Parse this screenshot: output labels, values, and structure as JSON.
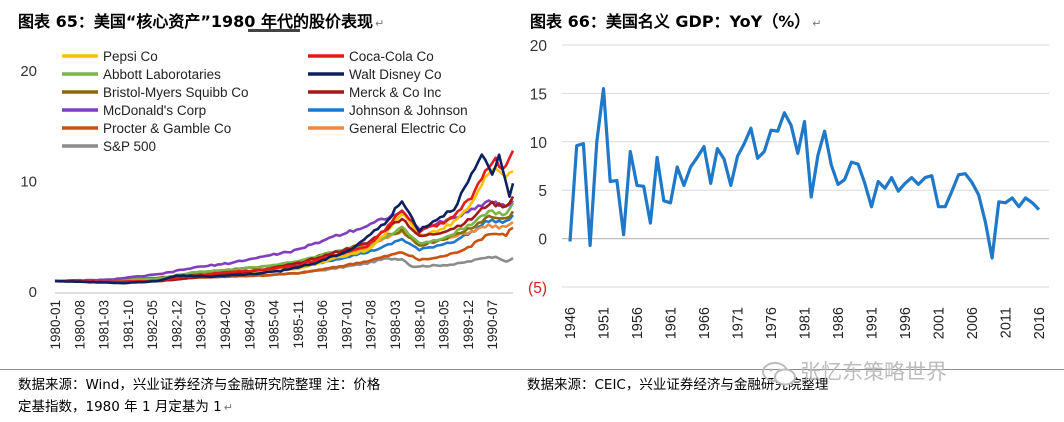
{
  "left": {
    "title": "图表 65：美国“核心资产”1980 年代的股价表现",
    "source_line1": "数据来源：Wind，兴业证券经济与金融研究院整理   注：价格",
    "source_line2": "定基指数，1980 年 1 月定基为 1"
  },
  "right": {
    "title": "图表 66：美国名义 GDP：YoY（%）",
    "source_line1": "数据来源：CEIC，兴业证券经济与金融研究院整理"
  },
  "return_mark": "↵",
  "watermark": "张忆东策略世界",
  "colors": {
    "pepsi": "#f5c400",
    "coca": "#e51a1a",
    "abbott": "#7ab648",
    "disney": "#0d2060",
    "bristol": "#8a6a00",
    "merck": "#a31818",
    "mcd": "#7f3fbf",
    "jnj": "#1f78c8",
    "pg": "#c8520e",
    "ge": "#f08a40",
    "sp500": "#8c8c8c",
    "gdp": "#1f78c8",
    "negative_label": "#d42020",
    "grid": "#d9d9d9"
  },
  "chart_data": [
    {
      "type": "line",
      "title": "美国“核心资产”1980 年代的股价表现",
      "xlabel": "",
      "ylabel": "",
      "ylim": [
        0,
        20
      ],
      "yticks": [
        "0",
        "10",
        "20"
      ],
      "x_tick_labels": [
        "1980-01",
        "1980-08",
        "1981-03",
        "1981-10",
        "1982-05",
        "1982-12",
        "1983-07",
        "1984-02",
        "1984-09",
        "1985-04",
        "1985-11",
        "1986-06",
        "1987-01",
        "1987-08",
        "1988-03",
        "1988-10",
        "1989-05",
        "1989-12",
        "1990-07"
      ],
      "x_count": 133,
      "legend_position": "top-left",
      "series": [
        {
          "key": "pepsi",
          "name": "Pepsi Co",
          "anchors": [
            [
              0,
              1
            ],
            [
              15,
              0.9
            ],
            [
              30,
              1.0
            ],
            [
              35,
              1.2
            ],
            [
              50,
              1.6
            ],
            [
              60,
              1.9
            ],
            [
              70,
              2.1
            ],
            [
              80,
              3.0
            ],
            [
              90,
              3.8
            ],
            [
              95,
              5.2
            ],
            [
              100,
              7.2
            ],
            [
              105,
              5.1
            ],
            [
              110,
              5.5
            ],
            [
              115,
              6.3
            ],
            [
              120,
              8.0
            ],
            [
              125,
              10.8
            ],
            [
              127,
              11.2
            ],
            [
              130,
              10.4
            ],
            [
              132,
              11.0
            ]
          ]
        },
        {
          "key": "coca",
          "name": "Coca-Cola Co",
          "anchors": [
            [
              0,
              1
            ],
            [
              15,
              0.9
            ],
            [
              30,
              1.0
            ],
            [
              35,
              1.3
            ],
            [
              50,
              1.8
            ],
            [
              60,
              2.0
            ],
            [
              70,
              2.4
            ],
            [
              80,
              3.3
            ],
            [
              90,
              4.1
            ],
            [
              95,
              5.6
            ],
            [
              100,
              7.4
            ],
            [
              105,
              5.5
            ],
            [
              110,
              6.0
            ],
            [
              115,
              6.8
            ],
            [
              120,
              8.6
            ],
            [
              125,
              11.5
            ],
            [
              127,
              12.0
            ],
            [
              129,
              11.0
            ],
            [
              132,
              12.6
            ]
          ]
        },
        {
          "key": "abbott",
          "name": "Abbott Laborotaries",
          "anchors": [
            [
              0,
              1
            ],
            [
              15,
              1.0
            ],
            [
              30,
              1.2
            ],
            [
              40,
              1.8
            ],
            [
              50,
              2.0
            ],
            [
              60,
              2.3
            ],
            [
              70,
              2.8
            ],
            [
              80,
              3.6
            ],
            [
              90,
              4.3
            ],
            [
              95,
              5.0
            ],
            [
              100,
              5.8
            ],
            [
              105,
              4.4
            ],
            [
              110,
              4.7
            ],
            [
              115,
              5.3
            ],
            [
              120,
              6.2
            ],
            [
              125,
              7.3
            ],
            [
              130,
              7.0
            ],
            [
              132,
              7.9
            ]
          ]
        },
        {
          "key": "disney",
          "name": "Walt Disney Co",
          "anchors": [
            [
              0,
              1
            ],
            [
              10,
              0.9
            ],
            [
              20,
              0.8
            ],
            [
              30,
              1.0
            ],
            [
              35,
              1.5
            ],
            [
              45,
              1.4
            ],
            [
              55,
              1.6
            ],
            [
              65,
              1.9
            ],
            [
              75,
              2.6
            ],
            [
              85,
              3.8
            ],
            [
              95,
              6.2
            ],
            [
              100,
              8.2
            ],
            [
              105,
              5.6
            ],
            [
              110,
              6.6
            ],
            [
              115,
              7.6
            ],
            [
              120,
              10.5
            ],
            [
              123,
              12.3
            ],
            [
              126,
              10.5
            ],
            [
              128,
              12.4
            ],
            [
              131,
              8.8
            ],
            [
              132,
              9.6
            ]
          ]
        },
        {
          "key": "bristol",
          "name": "Bristol-Myers Squibb Co",
          "anchors": [
            [
              0,
              1
            ],
            [
              15,
              1.0
            ],
            [
              30,
              1.3
            ],
            [
              40,
              1.7
            ],
            [
              50,
              2.0
            ],
            [
              60,
              2.3
            ],
            [
              70,
              2.7
            ],
            [
              80,
              3.6
            ],
            [
              90,
              4.4
            ],
            [
              95,
              5.0
            ],
            [
              100,
              5.6
            ],
            [
              105,
              4.2
            ],
            [
              110,
              4.6
            ],
            [
              115,
              5.1
            ],
            [
              120,
              5.8
            ],
            [
              125,
              6.8
            ],
            [
              130,
              6.6
            ],
            [
              132,
              7.2
            ]
          ]
        },
        {
          "key": "merck",
          "name": "Merck & Co Inc",
          "anchors": [
            [
              0,
              1
            ],
            [
              15,
              0.9
            ],
            [
              30,
              1.0
            ],
            [
              40,
              1.3
            ],
            [
              50,
              1.6
            ],
            [
              60,
              2.0
            ],
            [
              70,
              2.6
            ],
            [
              80,
              3.5
            ],
            [
              90,
              4.4
            ],
            [
              95,
              5.6
            ],
            [
              100,
              6.7
            ],
            [
              105,
              5.0
            ],
            [
              110,
              5.3
            ],
            [
              115,
              5.8
            ],
            [
              120,
              6.6
            ],
            [
              125,
              8.0
            ],
            [
              130,
              7.8
            ],
            [
              132,
              8.6
            ]
          ]
        },
        {
          "key": "mcd",
          "name": "McDonald's Corp",
          "anchors": [
            [
              0,
              1
            ],
            [
              15,
              1.1
            ],
            [
              30,
              1.6
            ],
            [
              40,
              2.2
            ],
            [
              50,
              2.6
            ],
            [
              60,
              3.2
            ],
            [
              70,
              3.8
            ],
            [
              80,
              5.0
            ],
            [
              90,
              6.0
            ],
            [
              95,
              6.7
            ],
            [
              100,
              7.2
            ],
            [
              105,
              5.6
            ],
            [
              110,
              6.2
            ],
            [
              115,
              6.7
            ],
            [
              120,
              7.4
            ],
            [
              125,
              8.3
            ],
            [
              130,
              7.7
            ],
            [
              132,
              8.4
            ]
          ]
        },
        {
          "key": "jnj",
          "name": "Johnson & Johnson",
          "anchors": [
            [
              0,
              1
            ],
            [
              15,
              1.0
            ],
            [
              30,
              1.2
            ],
            [
              40,
              1.5
            ],
            [
              50,
              1.6
            ],
            [
              60,
              1.8
            ],
            [
              70,
              2.2
            ],
            [
              80,
              2.9
            ],
            [
              90,
              3.6
            ],
            [
              95,
              4.1
            ],
            [
              100,
              4.8
            ],
            [
              105,
              3.8
            ],
            [
              110,
              4.2
            ],
            [
              115,
              4.6
            ],
            [
              120,
              5.4
            ],
            [
              125,
              6.5
            ],
            [
              130,
              6.3
            ],
            [
              132,
              7.0
            ]
          ]
        },
        {
          "key": "pg",
          "name": "Procter & Gamble Co",
          "anchors": [
            [
              0,
              1
            ],
            [
              15,
              0.9
            ],
            [
              30,
              1.0
            ],
            [
              40,
              1.3
            ],
            [
              50,
              1.4
            ],
            [
              60,
              1.5
            ],
            [
              70,
              1.7
            ],
            [
              80,
              2.2
            ],
            [
              90,
              2.8
            ],
            [
              95,
              3.2
            ],
            [
              100,
              3.6
            ],
            [
              105,
              2.9
            ],
            [
              110,
              3.1
            ],
            [
              115,
              3.5
            ],
            [
              120,
              4.2
            ],
            [
              125,
              5.3
            ],
            [
              130,
              5.2
            ],
            [
              132,
              5.9
            ]
          ]
        },
        {
          "key": "ge",
          "name": "General Electric Co",
          "anchors": [
            [
              0,
              1
            ],
            [
              15,
              1.0
            ],
            [
              30,
              1.1
            ],
            [
              40,
              1.5
            ],
            [
              50,
              1.7
            ],
            [
              60,
              2.0
            ],
            [
              70,
              2.4
            ],
            [
              80,
              3.1
            ],
            [
              90,
              4.0
            ],
            [
              95,
              4.8
            ],
            [
              100,
              5.5
            ],
            [
              105,
              4.3
            ],
            [
              110,
              4.6
            ],
            [
              115,
              5.0
            ],
            [
              120,
              5.5
            ],
            [
              125,
              6.0
            ],
            [
              130,
              5.8
            ],
            [
              132,
              6.3
            ]
          ]
        },
        {
          "key": "sp500",
          "name": "S&P 500",
          "anchors": [
            [
              0,
              1
            ],
            [
              15,
              1.0
            ],
            [
              30,
              1.0
            ],
            [
              40,
              1.3
            ],
            [
              50,
              1.4
            ],
            [
              60,
              1.5
            ],
            [
              70,
              1.7
            ],
            [
              80,
              2.1
            ],
            [
              90,
              2.6
            ],
            [
              95,
              3.0
            ],
            [
              100,
              3.0
            ],
            [
              103,
              2.3
            ],
            [
              110,
              2.4
            ],
            [
              115,
              2.5
            ],
            [
              120,
              2.8
            ],
            [
              125,
              3.2
            ],
            [
              128,
              3.1
            ],
            [
              130,
              2.8
            ],
            [
              132,
              3.0
            ]
          ]
        }
      ]
    },
    {
      "type": "line",
      "title": "美国名义 GDP：YoY（%）",
      "xlabel": "",
      "ylabel": "",
      "ylim": [
        -5,
        20
      ],
      "yticks": [
        "(5)",
        "0",
        "5",
        "10",
        "15",
        "20"
      ],
      "x_tick_labels": [
        "1946",
        "1951",
        "1956",
        "1961",
        "1966",
        "1971",
        "1976",
        "1981",
        "1986",
        "1991",
        "1996",
        "2001",
        "2006",
        "2011",
        "2016"
      ],
      "series": [
        {
          "key": "gdp",
          "name": "Nominal GDP YoY",
          "x": [
            1946,
            1947,
            1948,
            1949,
            1950,
            1951,
            1952,
            1953,
            1954,
            1955,
            1956,
            1957,
            1958,
            1959,
            1960,
            1961,
            1962,
            1963,
            1964,
            1965,
            1966,
            1967,
            1968,
            1969,
            1970,
            1971,
            1972,
            1973,
            1974,
            1975,
            1976,
            1977,
            1978,
            1979,
            1980,
            1981,
            1982,
            1983,
            1984,
            1985,
            1986,
            1987,
            1988,
            1989,
            1990,
            1991,
            1992,
            1993,
            1994,
            1995,
            1996,
            1997,
            1998,
            1999,
            2000,
            2001,
            2002,
            2003,
            2004,
            2005,
            2006,
            2007,
            2008,
            2009,
            2010,
            2011,
            2012,
            2013,
            2014,
            2015,
            2016
          ],
          "values": [
            -0.3,
            9.6,
            9.8,
            -0.7,
            10.0,
            15.5,
            5.9,
            6.0,
            0.4,
            9.0,
            5.5,
            5.4,
            1.6,
            8.4,
            3.9,
            3.7,
            7.4,
            5.5,
            7.4,
            8.4,
            9.5,
            5.7,
            9.3,
            8.2,
            5.5,
            8.5,
            9.8,
            11.4,
            8.3,
            9.0,
            11.2,
            11.1,
            13.0,
            11.7,
            8.8,
            12.1,
            4.3,
            8.6,
            11.1,
            7.6,
            5.6,
            6.1,
            7.9,
            7.7,
            5.7,
            3.3,
            5.9,
            5.2,
            6.3,
            4.9,
            5.7,
            6.3,
            5.6,
            6.3,
            6.5,
            3.3,
            3.3,
            4.9,
            6.6,
            6.7,
            5.8,
            4.5,
            1.7,
            -2.0,
            3.8,
            3.7,
            4.2,
            3.3,
            4.2,
            3.7,
            3.0
          ]
        }
      ]
    }
  ]
}
